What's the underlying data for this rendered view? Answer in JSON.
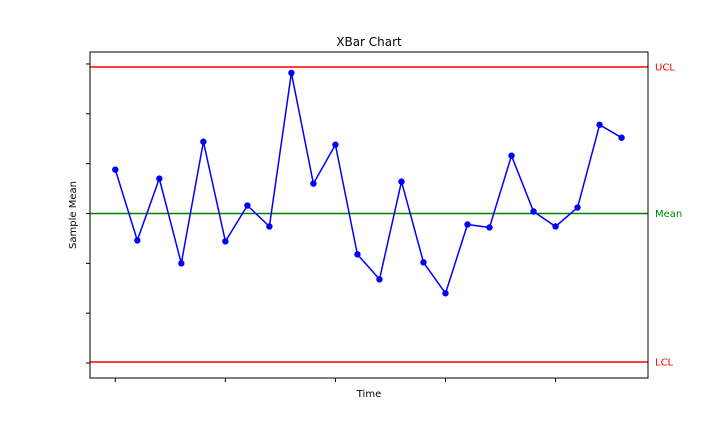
{
  "chart_data": {
    "type": "line",
    "title": "XBar Chart",
    "xlabel": "Time",
    "ylabel": "Sample Mean",
    "x": [
      0,
      1,
      2,
      3,
      4,
      5,
      6,
      7,
      8,
      9,
      10,
      11,
      12,
      13,
      14,
      15,
      16,
      17,
      18,
      19,
      20,
      21,
      22,
      23
    ],
    "series": [
      {
        "values": [
          0.44,
          -0.27,
          0.35,
          -0.5,
          0.72,
          -0.28,
          0.08,
          -0.13,
          1.41,
          0.3,
          0.69,
          -0.41,
          -0.66,
          0.32,
          -0.49,
          -0.8,
          -0.11,
          -0.14,
          0.58,
          0.02,
          -0.13,
          0.06,
          0.89,
          0.76
        ],
        "color": "#0000ff"
      }
    ],
    "control_lines": [
      {
        "label": "UCL",
        "value": 1.47,
        "color": "#ff0000"
      },
      {
        "label": "Mean",
        "value": 0.0,
        "color": "#008000"
      },
      {
        "label": "LCL",
        "value": -1.49,
        "color": "#ff0000"
      }
    ],
    "xlim": [
      -1.15,
      24.2
    ],
    "ylim": [
      -1.65,
      1.62
    ],
    "grid": false,
    "tick_labels_visible": false
  }
}
